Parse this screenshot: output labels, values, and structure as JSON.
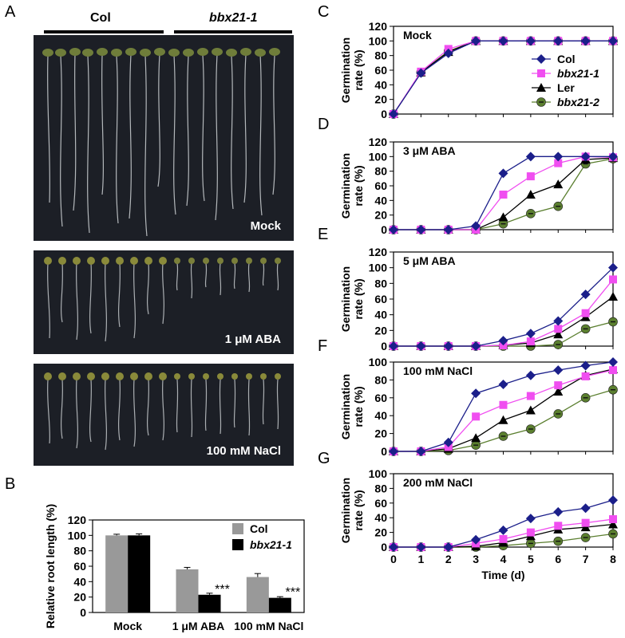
{
  "panel_letters": {
    "A": "A",
    "B": "B",
    "C": "C",
    "D": "D",
    "E": "E",
    "F": "F",
    "G": "G"
  },
  "photo_panel": {
    "genotypes": [
      "Col",
      "bbx21-1"
    ],
    "conditions": [
      "Mock",
      "1 μM ABA",
      "100 mM NaCl"
    ]
  },
  "chart_data": [
    {
      "panel": "B",
      "type": "bar",
      "ylabel": "Relative root length (%)",
      "ylim": [
        0,
        120
      ],
      "yticks": [
        0,
        20,
        40,
        60,
        80,
        100,
        120
      ],
      "categories": [
        "Mock",
        "1 μM ABA",
        "100 mM NaCl"
      ],
      "series": [
        {
          "name": "Col",
          "color": "#999999",
          "values": [
            100,
            56,
            46
          ],
          "errors": [
            1.5,
            2.5,
            4.5
          ]
        },
        {
          "name": "bbx21-1",
          "color": "#000000",
          "values": [
            100,
            23,
            19
          ],
          "errors": [
            2,
            2,
            1.5
          ]
        }
      ],
      "significance": [
        "",
        "***",
        "***"
      ],
      "legend": "top-right"
    },
    {
      "panel": "C",
      "type": "line",
      "annotation": "Mock",
      "ylabel": "Germination rate (%)",
      "ylim": [
        0,
        120
      ],
      "yticks": [
        0,
        20,
        40,
        60,
        80,
        100,
        120
      ],
      "x": [
        0,
        1,
        2,
        3,
        4,
        5,
        6,
        7,
        8
      ],
      "legend": "right",
      "series": [
        {
          "name": "Col",
          "values": [
            0,
            56,
            83,
            100,
            100,
            100,
            100,
            100,
            100
          ]
        },
        {
          "name": "bbx21-1",
          "values": [
            0,
            58,
            89,
            100,
            100,
            100,
            100,
            100,
            100
          ]
        },
        {
          "name": "Ler",
          "values": [
            0,
            57,
            85,
            100,
            100,
            100,
            100,
            100,
            100
          ]
        },
        {
          "name": "bbx21-2",
          "values": [
            0,
            57,
            86,
            100,
            100,
            100,
            100,
            100,
            100
          ]
        }
      ]
    },
    {
      "panel": "D",
      "type": "line",
      "annotation": "3 μM ABA",
      "ylabel": "Germination rate (%)",
      "ylim": [
        0,
        120
      ],
      "yticks": [
        0,
        20,
        40,
        60,
        80,
        100,
        120
      ],
      "x": [
        0,
        1,
        2,
        3,
        4,
        5,
        6,
        7,
        8
      ],
      "series": [
        {
          "name": "Col",
          "values": [
            0,
            0,
            0,
            5,
            77,
            100,
            100,
            100,
            100
          ]
        },
        {
          "name": "bbx21-1",
          "values": [
            0,
            0,
            0,
            0,
            48,
            73,
            91,
            100,
            99
          ]
        },
        {
          "name": "Ler",
          "values": [
            0,
            0,
            0,
            0,
            17,
            48,
            62,
            96,
            98
          ]
        },
        {
          "name": "bbx21-2",
          "values": [
            0,
            0,
            0,
            0,
            8,
            22,
            32,
            90,
            97
          ]
        }
      ]
    },
    {
      "panel": "E",
      "type": "line",
      "annotation": "5 μM ABA",
      "ylabel": "Germination rate (%)",
      "ylim": [
        0,
        120
      ],
      "yticks": [
        0,
        20,
        40,
        60,
        80,
        100,
        120
      ],
      "x": [
        0,
        1,
        2,
        3,
        4,
        5,
        6,
        7,
        8
      ],
      "series": [
        {
          "name": "Col",
          "values": [
            0,
            0,
            0,
            0,
            7,
            16,
            32,
            66,
            100
          ]
        },
        {
          "name": "bbx21-1",
          "values": [
            0,
            0,
            0,
            0,
            1,
            6,
            22,
            42,
            85
          ]
        },
        {
          "name": "Ler",
          "values": [
            0,
            0,
            0,
            0,
            1,
            4,
            15,
            37,
            63
          ]
        },
        {
          "name": "bbx21-2",
          "values": [
            0,
            0,
            0,
            0,
            0,
            0,
            2,
            22,
            31
          ]
        }
      ]
    },
    {
      "panel": "F",
      "type": "line",
      "annotation": "100 mM NaCl",
      "ylabel": "Germination rate (%)",
      "ylim": [
        0,
        100
      ],
      "yticks": [
        0,
        20,
        40,
        60,
        80,
        100
      ],
      "x": [
        0,
        1,
        2,
        3,
        4,
        5,
        6,
        7,
        8
      ],
      "series": [
        {
          "name": "Col",
          "values": [
            0,
            0,
            10,
            65,
            75,
            85,
            91,
            96,
            100
          ]
        },
        {
          "name": "bbx21-1",
          "values": [
            0,
            0,
            5,
            39,
            52,
            62,
            74,
            84,
            91
          ]
        },
        {
          "name": "Ler",
          "values": [
            0,
            0,
            3,
            15,
            35,
            46,
            67,
            85,
            92
          ]
        },
        {
          "name": "bbx21-2",
          "values": [
            0,
            0,
            1,
            7,
            17,
            25,
            42,
            60,
            69
          ]
        }
      ]
    },
    {
      "panel": "G",
      "type": "line",
      "annotation": "200 mM NaCl",
      "ylabel": "Germination rate (%)",
      "xlabel": "Time (d)",
      "ylim": [
        0,
        100
      ],
      "yticks": [
        0,
        20,
        40,
        60,
        80,
        100
      ],
      "x": [
        0,
        1,
        2,
        3,
        4,
        5,
        6,
        7,
        8
      ],
      "series": [
        {
          "name": "Col",
          "values": [
            0,
            0,
            0,
            10,
            23,
            39,
            48,
            53,
            64
          ]
        },
        {
          "name": "bbx21-1",
          "values": [
            0,
            0,
            0,
            5,
            11,
            20,
            29,
            33,
            38
          ]
        },
        {
          "name": "Ler",
          "values": [
            0,
            0,
            0,
            1,
            6,
            15,
            24,
            27,
            31
          ]
        },
        {
          "name": "bbx21-2",
          "values": [
            0,
            0,
            0,
            0,
            2,
            5,
            8,
            13,
            18
          ]
        }
      ]
    }
  ],
  "series_style": {
    "Col": {
      "color": "#1b1f8a",
      "marker": "diamond"
    },
    "bbx21-1": {
      "color": "#f04ef0",
      "marker": "square"
    },
    "Ler": {
      "color": "#000000",
      "marker": "triangle"
    },
    "bbx21-2": {
      "color": "#5b7f2f",
      "marker": "circle"
    }
  }
}
